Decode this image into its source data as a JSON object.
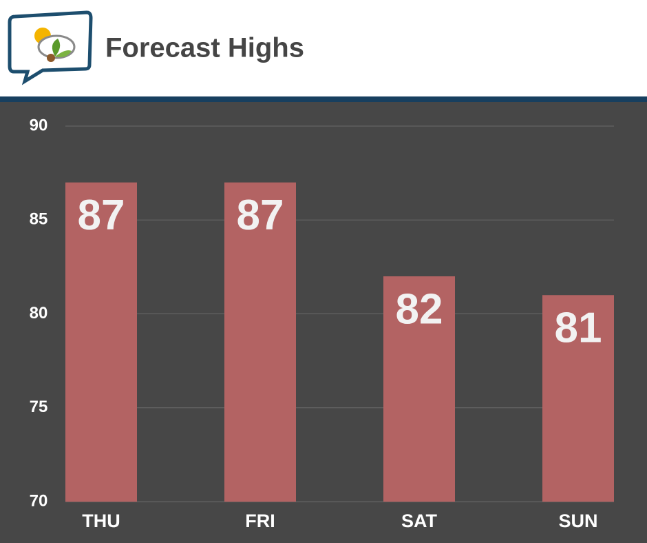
{
  "chart_data": {
    "type": "bar",
    "title": "Forecast Highs",
    "categories": [
      "THU",
      "FRI",
      "SAT",
      "SUN"
    ],
    "values": [
      87,
      87,
      82,
      81
    ],
    "color": "#b36363",
    "ylim": [
      70,
      90
    ],
    "yticks": [
      70,
      75,
      80,
      85,
      90
    ],
    "grid": true
  }
}
